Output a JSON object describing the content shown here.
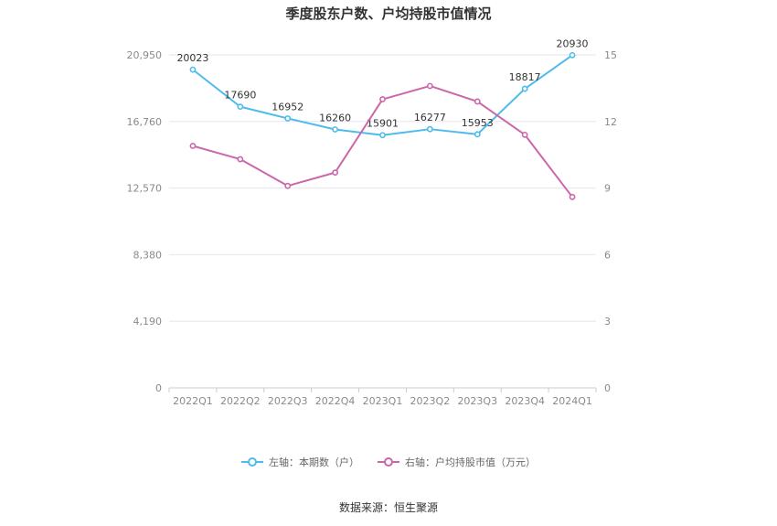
{
  "chart_data": {
    "type": "line",
    "title": "季度股东户数、户均持股市值情况",
    "categories": [
      "2022Q1",
      "2022Q2",
      "2022Q3",
      "2022Q4",
      "2023Q1",
      "2023Q2",
      "2023Q3",
      "2023Q4",
      "2024Q1"
    ],
    "left_axis": {
      "ylim": [
        0,
        20950
      ],
      "ticks": [
        "0",
        "4,190",
        "8,380",
        "12,570",
        "16,760",
        "20,950"
      ]
    },
    "right_axis": {
      "ylim": [
        0,
        15
      ],
      "ticks": [
        "0",
        "3",
        "6",
        "9",
        "12",
        "15"
      ]
    },
    "grid": true,
    "legend_position": "bottom",
    "series": [
      {
        "name": "左轴：本期数（户）",
        "axis": "left",
        "color": "#4dbbec",
        "values": [
          20023,
          17690,
          16952,
          16260,
          15901,
          16277,
          15953,
          18817,
          20930
        ],
        "labels": [
          "20023",
          "17690",
          "16952",
          "16260",
          "15901",
          "16277",
          "15953",
          "18817",
          "20930"
        ]
      },
      {
        "name": "右轴：户均持股市值（万元）",
        "axis": "right",
        "color": "#cc66aa",
        "values": [
          10.9,
          10.3,
          9.1,
          9.7,
          13.0,
          13.6,
          12.9,
          11.4,
          8.6
        ]
      }
    ]
  },
  "footer": {
    "source": "数据来源：恒生聚源"
  }
}
